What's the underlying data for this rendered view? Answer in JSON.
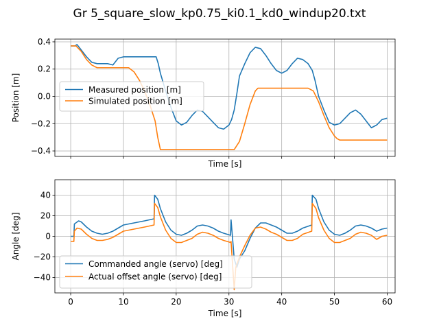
{
  "figure": {
    "title": "Gr 5_square_slow_kp0.75_ki0.1_kd0_windup20.txt"
  },
  "colors": {
    "series1": "#1f77b4",
    "series2": "#ff7f0e",
    "grid": "#b0b0b0"
  },
  "chart_data": [
    {
      "type": "line",
      "xlabel": "Time [s]",
      "ylabel": "Position [m]",
      "xlim": [
        -3,
        61.5
      ],
      "ylim": [
        -0.44,
        0.42
      ],
      "xticks": [
        0,
        10,
        20,
        30,
        40,
        50,
        60
      ],
      "xtick_labels_visible": false,
      "yticks": [
        -0.4,
        -0.2,
        0.0,
        0.2,
        0.4
      ],
      "ytick_labels": [
        "−0.4",
        "−0.2",
        "0.0",
        "0.2",
        "0.4"
      ],
      "grid": true,
      "legend_position": "center-left",
      "series": [
        {
          "name": "Measured position [m]",
          "x": [
            0,
            0.8,
            1.2,
            2,
            3,
            4,
            5,
            6,
            7,
            8,
            9,
            10,
            12,
            14,
            15.5,
            16.2,
            16.6,
            17,
            18,
            19,
            20,
            21,
            22,
            23,
            24,
            25,
            26,
            27,
            28,
            29,
            30,
            30.5,
            31,
            31.5,
            32,
            33,
            34,
            35,
            36,
            37,
            38,
            39,
            40,
            41,
            42,
            43,
            44,
            45,
            45.8,
            46.3,
            47,
            48,
            49,
            50,
            51,
            52,
            53,
            54,
            55,
            56,
            57,
            58,
            59,
            60
          ],
          "y": [
            0.37,
            0.37,
            0.38,
            0.34,
            0.29,
            0.25,
            0.24,
            0.24,
            0.24,
            0.23,
            0.28,
            0.29,
            0.29,
            0.29,
            0.29,
            0.29,
            0.24,
            0.17,
            0.04,
            -0.08,
            -0.18,
            -0.21,
            -0.19,
            -0.14,
            -0.1,
            -0.11,
            -0.15,
            -0.19,
            -0.23,
            -0.24,
            -0.21,
            -0.17,
            -0.1,
            0.02,
            0.15,
            0.24,
            0.32,
            0.36,
            0.35,
            0.3,
            0.24,
            0.19,
            0.17,
            0.19,
            0.24,
            0.28,
            0.27,
            0.24,
            0.19,
            0.12,
            0.0,
            -0.1,
            -0.19,
            -0.21,
            -0.2,
            -0.16,
            -0.12,
            -0.1,
            -0.13,
            -0.18,
            -0.23,
            -0.21,
            -0.17,
            -0.16
          ]
        },
        {
          "name": "Simulated position [m]",
          "x": [
            0,
            1,
            2,
            3,
            4,
            5,
            6,
            7,
            8,
            9,
            10,
            11,
            12,
            13,
            14,
            15,
            16,
            16.5,
            17,
            20,
            25,
            30,
            31,
            32,
            33,
            34,
            35,
            35.5,
            40,
            45,
            46,
            47,
            48,
            49,
            50,
            50.5,
            51,
            55,
            60
          ],
          "y": [
            0.37,
            0.37,
            0.33,
            0.27,
            0.23,
            0.21,
            0.21,
            0.21,
            0.21,
            0.21,
            0.21,
            0.21,
            0.18,
            0.12,
            0.04,
            -0.06,
            -0.18,
            -0.3,
            -0.39,
            -0.39,
            -0.39,
            -0.39,
            -0.39,
            -0.33,
            -0.2,
            -0.06,
            0.04,
            0.06,
            0.06,
            0.06,
            0.04,
            -0.04,
            -0.14,
            -0.23,
            -0.29,
            -0.31,
            -0.32,
            -0.32,
            -0.32
          ]
        }
      ]
    },
    {
      "type": "line",
      "xlabel": "Time [s]",
      "ylabel": "Angle [deg]",
      "xlim": [
        -3,
        61.5
      ],
      "ylim": [
        -55,
        55
      ],
      "xticks": [
        0,
        10,
        20,
        30,
        40,
        50,
        60
      ],
      "xtick_labels": [
        "0",
        "10",
        "20",
        "30",
        "40",
        "50",
        "60"
      ],
      "yticks": [
        -40,
        -20,
        0,
        20,
        40
      ],
      "ytick_labels": [
        "−40",
        "−20",
        "0",
        "20",
        "40"
      ],
      "grid": true,
      "legend_position": "bottom-left",
      "series": [
        {
          "name": "Commanded angle (servo) [deg]",
          "x": [
            0,
            0.6,
            0.7,
            1.5,
            2,
            3,
            4,
            5,
            6,
            7,
            8,
            9,
            10,
            12,
            14,
            15.8,
            15.9,
            16.5,
            17,
            18,
            19,
            20,
            21,
            22,
            23,
            24,
            25,
            26,
            27,
            28,
            29,
            30.3,
            30.4,
            31,
            31.5,
            32,
            33,
            34,
            35,
            36,
            37,
            38,
            39,
            40,
            41,
            42,
            43,
            44,
            45.7,
            45.8,
            46.5,
            47,
            48,
            49,
            50,
            51,
            52,
            53,
            54,
            55,
            56,
            57,
            58,
            59,
            60
          ],
          "y": [
            0,
            0,
            12,
            15,
            14,
            9,
            5,
            3,
            2,
            3,
            5,
            8,
            11,
            13,
            15,
            17,
            40,
            36,
            27,
            14,
            6,
            2,
            1,
            3,
            6,
            10,
            11,
            10,
            8,
            5,
            3,
            1,
            16,
            -22,
            -30,
            -22,
            -14,
            -2,
            8,
            13,
            13,
            11,
            9,
            6,
            3,
            3,
            5,
            8,
            11,
            40,
            36,
            27,
            14,
            6,
            2,
            1,
            3,
            6,
            10,
            11,
            10,
            8,
            5,
            7,
            8
          ]
        },
        {
          "name": "Actual offset angle (servo) [deg]",
          "x": [
            0,
            0.6,
            0.7,
            1.2,
            2,
            3,
            4,
            5,
            6,
            7,
            8,
            9,
            10,
            12,
            14,
            15.8,
            15.9,
            16.5,
            17,
            18,
            19,
            20,
            21,
            22,
            23,
            24,
            25,
            26,
            27,
            28,
            29,
            30.3,
            30.4,
            31,
            31.3,
            32,
            33,
            34,
            35,
            36,
            37,
            38,
            39,
            40,
            41,
            42,
            43,
            44,
            45.7,
            45.8,
            46.5,
            47,
            48,
            49,
            50,
            51,
            52,
            53,
            54,
            55,
            56,
            57,
            58,
            59,
            60
          ],
          "y": [
            -5,
            -5,
            5,
            8,
            7,
            2,
            -2,
            -4,
            -4,
            -3,
            -1,
            2,
            5,
            7,
            9,
            11,
            32,
            28,
            19,
            6,
            -2,
            -6,
            -6,
            -4,
            -2,
            2,
            4,
            3,
            1,
            -2,
            -4,
            -6,
            -5,
            -52,
            -30,
            -20,
            -9,
            1,
            8,
            9,
            7,
            4,
            2,
            -1,
            -4,
            -4,
            -2,
            2,
            5,
            32,
            27,
            18,
            6,
            -2,
            -6,
            -6,
            -4,
            -2,
            2,
            4,
            3,
            1,
            -3,
            0,
            1
          ]
        }
      ]
    }
  ]
}
